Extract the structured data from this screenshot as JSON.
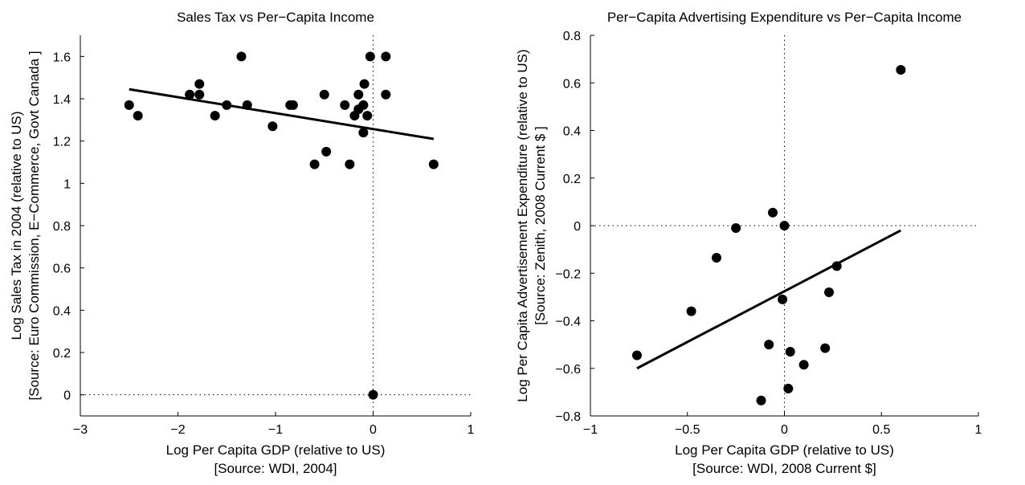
{
  "chart_data": [
    {
      "type": "scatter",
      "title": "Sales Tax vs Per−Capita Income",
      "xlabel": [
        "Log Per Capita GDP (relative to US)",
        "[Source: WDI, 2004]"
      ],
      "ylabel": [
        "Log Sales Tax in 2004 (relative to US)",
        "[Source: Euro Commission, E−Commerce, Govt Canada ]"
      ],
      "xlim": [
        -3,
        1
      ],
      "ylim": [
        -0.1,
        1.7
      ],
      "xticks": [
        -3,
        -2,
        -1,
        0,
        1
      ],
      "xtick_labels": [
        "−3",
        "−2",
        "−1",
        "0",
        "1"
      ],
      "yticks": [
        0,
        0.2,
        0.4,
        0.6,
        0.8,
        1,
        1.2,
        1.4,
        1.6
      ],
      "ytick_labels": [
        "0",
        "0.2",
        "0.4",
        "0.6",
        "0.8",
        "1",
        "1.2",
        "1.4",
        "1.6"
      ],
      "grid": false,
      "reference_lines": {
        "x": 0,
        "y": 0,
        "style": "dotted"
      },
      "points": [
        [
          -2.5,
          1.37
        ],
        [
          -2.41,
          1.32
        ],
        [
          -1.88,
          1.42
        ],
        [
          -1.78,
          1.47
        ],
        [
          -1.78,
          1.42
        ],
        [
          -1.62,
          1.32
        ],
        [
          -1.5,
          1.37
        ],
        [
          -1.35,
          1.6
        ],
        [
          -1.29,
          1.37
        ],
        [
          -0.85,
          1.37
        ],
        [
          -0.82,
          1.37
        ],
        [
          -1.03,
          1.27
        ],
        [
          -0.6,
          1.09
        ],
        [
          -0.5,
          1.42
        ],
        [
          -0.48,
          1.15
        ],
        [
          -0.29,
          1.37
        ],
        [
          -0.24,
          1.09
        ],
        [
          -0.19,
          1.32
        ],
        [
          -0.15,
          1.35
        ],
        [
          -0.15,
          1.42
        ],
        [
          -0.1,
          1.37
        ],
        [
          -0.09,
          1.47
        ],
        [
          -0.1,
          1.24
        ],
        [
          -0.06,
          1.32
        ],
        [
          -0.03,
          1.6
        ],
        [
          0.13,
          1.6
        ],
        [
          0.13,
          1.42
        ],
        [
          0.62,
          1.09
        ],
        [
          0,
          0
        ]
      ],
      "fit_line": {
        "x": [
          -2.5,
          0.62
        ],
        "y": [
          1.445,
          1.21
        ]
      },
      "marker_color": "#000000",
      "line_color": "#000000"
    },
    {
      "type": "scatter",
      "title": "Per−Capita Advertising Expenditure vs Per−Capita Income",
      "xlabel": [
        "Log Per Capita GDP (relative to US)",
        "[Source: WDI, 2008 Current $]"
      ],
      "ylabel": [
        "Log Per Capita Advertisement Expenditure (relative to US)",
        "[Source: Zenith, 2008 Current $ ]"
      ],
      "xlim": [
        -1,
        1
      ],
      "ylim": [
        -0.8,
        0.8
      ],
      "xticks": [
        -1,
        -0.5,
        0,
        0.5,
        1
      ],
      "xtick_labels": [
        "−1",
        "−0.5",
        "0",
        "0.5",
        "1"
      ],
      "yticks": [
        -0.8,
        -0.6,
        -0.4,
        -0.2,
        0,
        0.2,
        0.4,
        0.6,
        0.8
      ],
      "ytick_labels": [
        "−0.8",
        "−0.6",
        "−0.4",
        "−0.2",
        "0",
        "0.2",
        "0.4",
        "0.6",
        "0.8"
      ],
      "grid": false,
      "reference_lines": {
        "x": 0,
        "y": 0,
        "style": "dotted"
      },
      "points": [
        [
          0.6,
          0.655
        ],
        [
          -0.06,
          0.055
        ],
        [
          0,
          0
        ],
        [
          -0.25,
          -0.01
        ],
        [
          -0.35,
          -0.135
        ],
        [
          -0.48,
          -0.36
        ],
        [
          0.27,
          -0.17
        ],
        [
          0.23,
          -0.28
        ],
        [
          -0.01,
          -0.31
        ],
        [
          -0.08,
          -0.5
        ],
        [
          0.03,
          -0.53
        ],
        [
          0.21,
          -0.515
        ],
        [
          0.1,
          -0.585
        ],
        [
          0.02,
          -0.685
        ],
        [
          -0.12,
          -0.735
        ],
        [
          -0.76,
          -0.545
        ]
      ],
      "fit_line": {
        "x": [
          -0.76,
          0.6
        ],
        "y": [
          -0.6,
          -0.02
        ]
      },
      "marker_color": "#000000",
      "line_color": "#000000"
    }
  ]
}
